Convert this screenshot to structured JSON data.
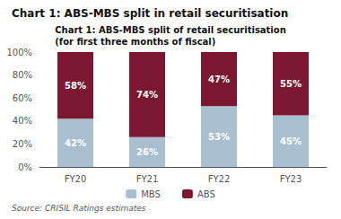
{
  "chart_data": {
    "type": "bar",
    "title": "Chart 1: ABS-MBS split in retail securitisation",
    "subtitle": "Chart 1: ABS-MBS split of retail securitisation\n(for first three months of fiscal)",
    "categories": [
      "FY20",
      "FY21",
      "FY22",
      "FY23"
    ],
    "series": [
      {
        "name": "MBS",
        "color": "#a8bfcf",
        "values": [
          42,
          26,
          53,
          45
        ],
        "value_labels": [
          "42%",
          "26%",
          "53%",
          "45%"
        ]
      },
      {
        "name": "ABS",
        "color": "#7b1830",
        "values": [
          58,
          74,
          47,
          55
        ],
        "value_labels": [
          "58%",
          "74%",
          "47%",
          "55%"
        ]
      }
    ],
    "stacked": true,
    "data_labels": true,
    "ylim": [
      0,
      100
    ],
    "yticks": [
      {
        "value": 0,
        "label": "0%"
      },
      {
        "value": 20,
        "label": "20%"
      },
      {
        "value": 40,
        "label": "40%"
      },
      {
        "value": 60,
        "label": "60%"
      },
      {
        "value": 80,
        "label": "80%"
      },
      {
        "value": 100,
        "label": "100%"
      }
    ],
    "grid": false,
    "legend": "bottom",
    "annotations": [
      "Source: CRISIL Ratings estimates"
    ]
  }
}
